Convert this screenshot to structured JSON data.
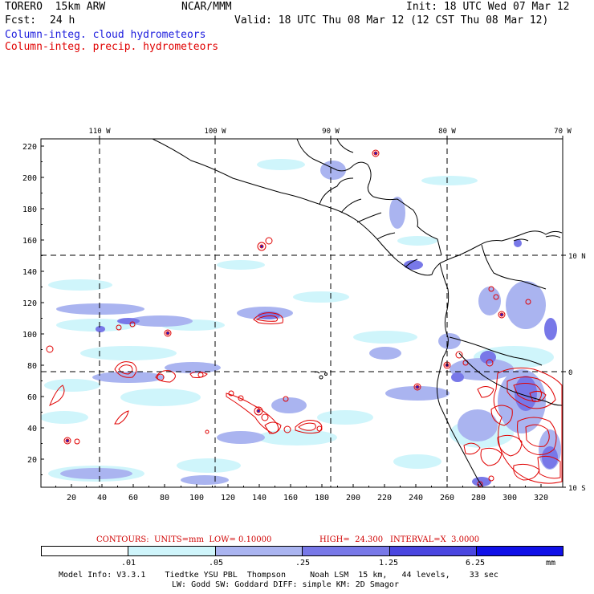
{
  "header": {
    "model": "TORERO  15km ARW",
    "center": "NCAR/MMM",
    "init": "Init: 18 UTC Wed 07 Mar 12",
    "fcst_label": "Fcst:",
    "fcst_value": "24 h",
    "valid": "Valid: 18 UTC Thu 08 Mar 12 (12 CST Thu 08 Mar 12)",
    "field1": "Column-integ. cloud hydrometeors",
    "field2": "Column-integ. precip. hydrometeors"
  },
  "top_lon_labels": [
    "110 W",
    "100 W",
    "90 W",
    "80 W",
    "70 W"
  ],
  "right_lat_labels": [
    "10 N",
    "0",
    "10 S"
  ],
  "x_ticks": [
    "20",
    "40",
    "60",
    "80",
    "100",
    "120",
    "140",
    "160",
    "180",
    "200",
    "220",
    "240",
    "260",
    "280",
    "300",
    "320"
  ],
  "y_ticks": [
    "20",
    "40",
    "60",
    "80",
    "100",
    "120",
    "140",
    "160",
    "180",
    "200",
    "220"
  ],
  "contours_info": {
    "units": "CONTOURS:  UNITS=mm  LOW= 0.10000",
    "high": "HIGH=  24.300",
    "interval": "INTERVAL=X  3.0000"
  },
  "colorbar": {
    "labels": [
      ".01",
      ".05",
      ".25",
      "1.25",
      "6.25",
      "mm"
    ],
    "colors": [
      "#ffffff",
      "#cff5fb",
      "#aab4f0",
      "#7878e8",
      "#4a46e0",
      "#1010e8"
    ]
  },
  "footer": {
    "line1": "Model Info: V3.3.1    Tiedtke YSU PBL  Thompson     Noah LSM  15 km,   44 levels,    33 sec",
    "line2": "LW: Godd SW: Goddard DIFF: simple KM: 2D Smagor"
  }
}
